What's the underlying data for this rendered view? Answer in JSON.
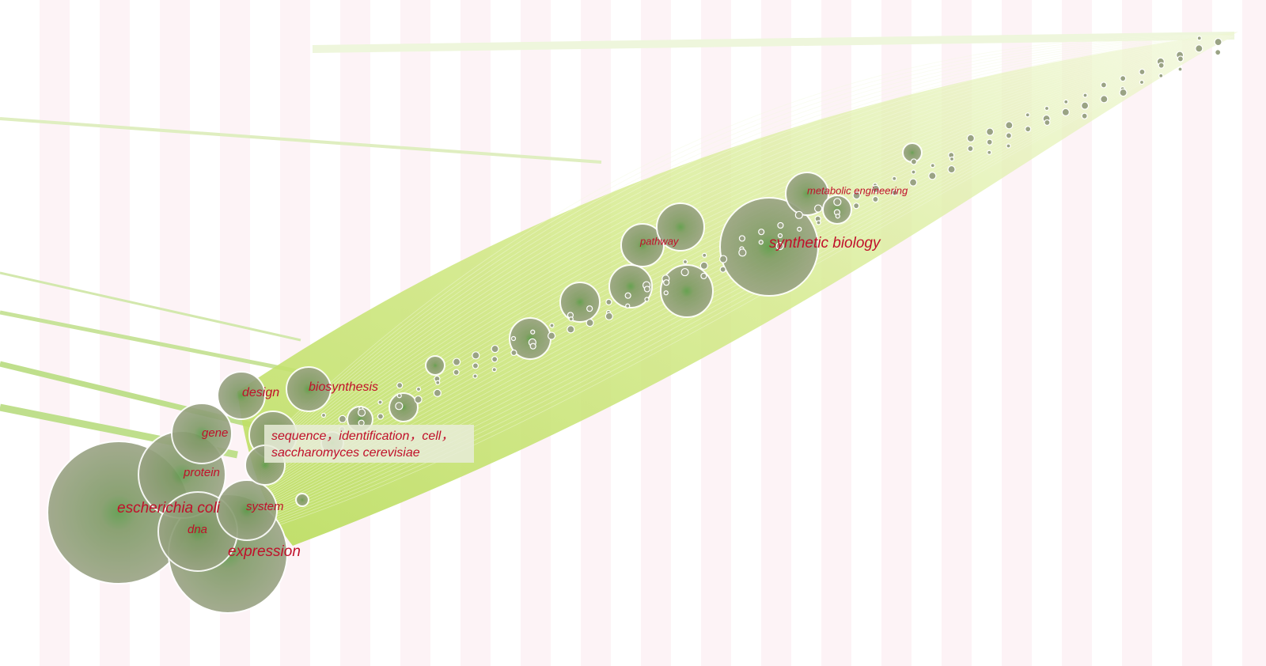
{
  "labels": {
    "design": "design",
    "biosynthesis": "biosynthesis",
    "gene": "gene",
    "sequence_line1": "sequence，identification，cell，",
    "sequence_line2": "saccharomyces cerevisiae",
    "protein": "protein",
    "escherichia_coli": "escherichia coli",
    "system": "system",
    "dna": "dna",
    "expression": "expression",
    "pathway": "pathway",
    "synthetic_biology": "synthetic biology",
    "metabolic_engineering": "metabolic engineering"
  }
}
